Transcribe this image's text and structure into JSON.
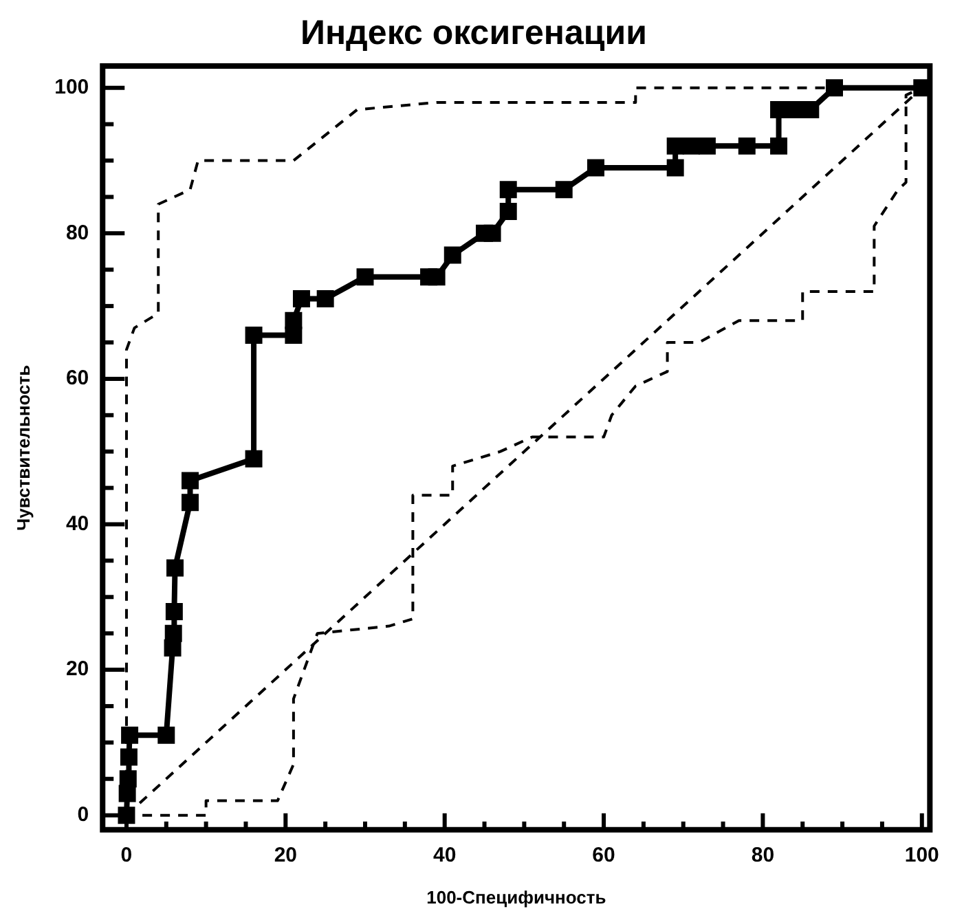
{
  "chart_data": {
    "type": "line",
    "title": "Индекс оксигенации",
    "xlabel": "100-Специфичность",
    "ylabel": "Чувствительность",
    "xlim": [
      -3,
      101
    ],
    "ylim": [
      -2,
      103
    ],
    "xticks": [
      0,
      {
        "value": 5,
        "label": null
      },
      {
        "value": 10,
        "label": null
      },
      {
        "value": 15,
        "label": null
      },
      20,
      {
        "value": 25,
        "label": null
      },
      {
        "value": 30,
        "label": null
      },
      {
        "value": 35,
        "label": null
      },
      40,
      {
        "value": 45,
        "label": null
      },
      {
        "value": 50,
        "label": null
      },
      {
        "value": 55,
        "label": null
      },
      60,
      {
        "value": 65,
        "label": null
      },
      {
        "value": 70,
        "label": null
      },
      {
        "value": 75,
        "label": null
      },
      80,
      {
        "value": 85,
        "label": null
      },
      {
        "value": 90,
        "label": null
      },
      {
        "value": 95,
        "label": null
      },
      100
    ],
    "yticks": [
      0,
      {
        "value": 5,
        "label": null
      },
      {
        "value": 10,
        "label": null
      },
      {
        "value": 15,
        "label": null
      },
      20,
      {
        "value": 25,
        "label": null
      },
      {
        "value": 30,
        "label": null
      },
      {
        "value": 35,
        "label": null
      },
      40,
      {
        "value": 45,
        "label": null
      },
      {
        "value": 50,
        "label": null
      },
      {
        "value": 55,
        "label": null
      },
      60,
      {
        "value": 65,
        "label": null
      },
      {
        "value": 70,
        "label": null
      },
      {
        "value": 75,
        "label": null
      },
      80,
      {
        "value": 85,
        "label": null
      },
      {
        "value": 90,
        "label": null
      },
      {
        "value": 95,
        "label": null
      },
      100
    ],
    "grid": false,
    "legend": false,
    "series": [
      {
        "color": "#000000",
        "marker": "square",
        "line_style": "solid",
        "x": [
          0,
          0.1,
          0.2,
          0.3,
          0.4,
          5,
          5.8,
          5.9,
          6,
          6.1,
          8,
          8,
          16,
          16,
          21,
          21,
          22,
          25,
          30,
          38,
          39,
          41,
          45,
          46,
          48,
          48,
          55,
          59,
          69,
          69,
          71,
          73,
          78,
          82,
          82,
          84,
          86,
          89,
          100
        ],
        "values": [
          0,
          3,
          5,
          8,
          11,
          11,
          23,
          25,
          28,
          34,
          43,
          46,
          49,
          66,
          66,
          68,
          71,
          71,
          74,
          74,
          74,
          77,
          80,
          80,
          83,
          86,
          86,
          89,
          89,
          92,
          92,
          92,
          92,
          92,
          97,
          97,
          97,
          100,
          100
        ]
      },
      {
        "color": "#000000",
        "marker": "none",
        "line_style": "dashed",
        "x": [
          0,
          0,
          1,
          4,
          4,
          8,
          9,
          21,
          29,
          39,
          49,
          64,
          64,
          100
        ],
        "values": [
          0,
          64,
          67,
          69,
          84,
          86,
          90,
          90,
          97,
          98,
          98,
          98,
          100,
          100
        ]
      },
      {
        "color": "#000000",
        "marker": "none",
        "line_style": "dashed",
        "x": [
          2,
          10,
          10,
          19,
          21,
          21,
          24,
          33,
          36,
          36,
          41,
          41,
          47,
          51,
          60,
          61,
          64,
          68,
          68,
          72,
          77,
          85,
          85,
          94,
          94,
          97,
          98,
          98,
          100
        ],
        "values": [
          0,
          0,
          2,
          2,
          7,
          16,
          25,
          26,
          27,
          44,
          44,
          48,
          50,
          52,
          52,
          55,
          59,
          61,
          65,
          65,
          68,
          68,
          72,
          72,
          81,
          86,
          87,
          99,
          100
        ]
      },
      {
        "color": "#000000",
        "marker": "none",
        "line_style": "dashed",
        "x": [
          0,
          100
        ],
        "values": [
          0,
          100
        ]
      }
    ]
  }
}
